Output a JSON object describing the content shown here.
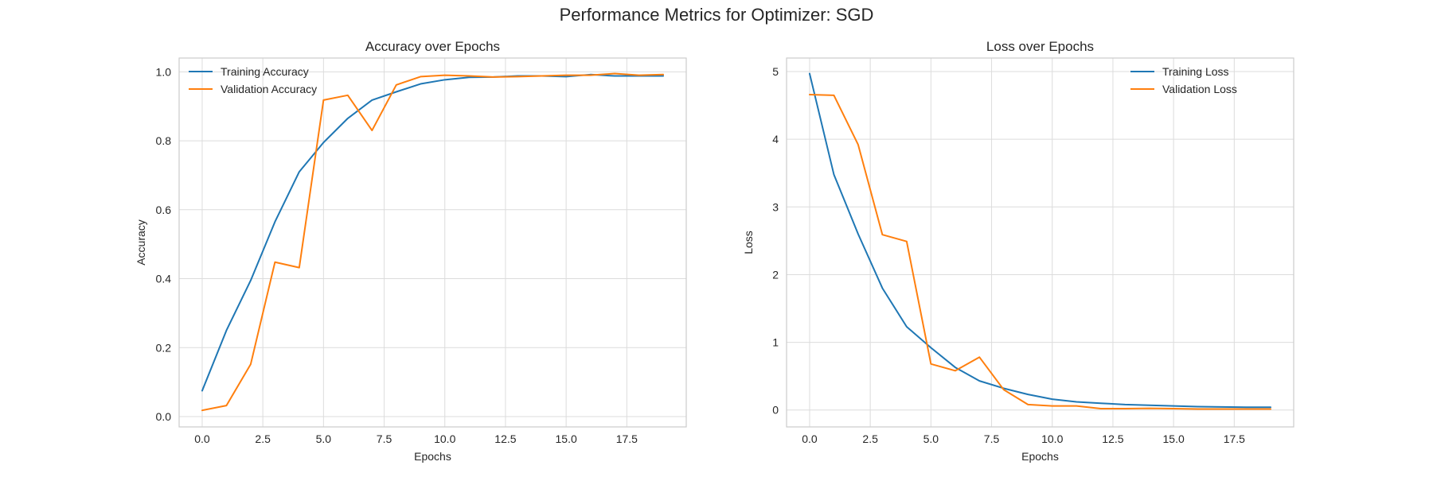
{
  "suptitle": "Performance Metrics for Optimizer: SGD",
  "colors": {
    "training": "#1f77b4",
    "validation": "#ff7f0e",
    "grid": "#dcdcdc",
    "axes_border": "#cccccc",
    "text": "#262626"
  },
  "chart_data": [
    {
      "type": "line",
      "title": "Accuracy over Epochs",
      "xlabel": "Epochs",
      "ylabel": "Accuracy",
      "xlim": [
        -0.95,
        19.95
      ],
      "ylim": [
        -0.03,
        1.04
      ],
      "xticks": [
        0.0,
        2.5,
        5.0,
        7.5,
        10.0,
        12.5,
        15.0,
        17.5
      ],
      "xtick_labels": [
        "0.0",
        "2.5",
        "5.0",
        "7.5",
        "10.0",
        "12.5",
        "15.0",
        "17.5"
      ],
      "yticks": [
        0.0,
        0.2,
        0.4,
        0.6,
        0.8,
        1.0
      ],
      "ytick_labels": [
        "0.0",
        "0.2",
        "0.4",
        "0.6",
        "0.8",
        "1.0"
      ],
      "grid": true,
      "legend_position": "upper-left",
      "x": [
        0,
        1,
        2,
        3,
        4,
        5,
        6,
        7,
        8,
        9,
        10,
        11,
        12,
        13,
        14,
        15,
        16,
        17,
        18,
        19
      ],
      "series": [
        {
          "name": "Training Accuracy",
          "color": "#1f77b4",
          "values": [
            0.075,
            0.25,
            0.395,
            0.565,
            0.71,
            0.795,
            0.865,
            0.918,
            0.942,
            0.965,
            0.977,
            0.984,
            0.985,
            0.988,
            0.988,
            0.986,
            0.992,
            0.988,
            0.988,
            0.988
          ]
        },
        {
          "name": "Validation Accuracy",
          "color": "#ff7f0e",
          "values": [
            0.018,
            0.032,
            0.152,
            0.448,
            0.432,
            0.918,
            0.932,
            0.83,
            0.962,
            0.986,
            0.99,
            0.988,
            0.985,
            0.986,
            0.988,
            0.99,
            0.99,
            0.995,
            0.99,
            0.992
          ]
        }
      ]
    },
    {
      "type": "line",
      "title": "Loss over Epochs",
      "xlabel": "Epochs",
      "ylabel": "Loss",
      "xlim": [
        -0.95,
        19.95
      ],
      "ylim": [
        -0.25,
        5.2
      ],
      "xticks": [
        0.0,
        2.5,
        5.0,
        7.5,
        10.0,
        12.5,
        15.0,
        17.5
      ],
      "xtick_labels": [
        "0.0",
        "2.5",
        "5.0",
        "7.5",
        "10.0",
        "12.5",
        "15.0",
        "17.5"
      ],
      "yticks": [
        0,
        1,
        2,
        3,
        4,
        5
      ],
      "ytick_labels": [
        "0",
        "1",
        "2",
        "3",
        "4",
        "5"
      ],
      "grid": true,
      "legend_position": "upper-right",
      "x": [
        0,
        1,
        2,
        3,
        4,
        5,
        6,
        7,
        8,
        9,
        10,
        11,
        12,
        13,
        14,
        15,
        16,
        17,
        18,
        19
      ],
      "series": [
        {
          "name": "Training Loss",
          "color": "#1f77b4",
          "values": [
            4.97,
            3.48,
            2.6,
            1.8,
            1.23,
            0.92,
            0.63,
            0.43,
            0.32,
            0.23,
            0.16,
            0.12,
            0.1,
            0.08,
            0.07,
            0.06,
            0.05,
            0.045,
            0.04,
            0.04
          ]
        },
        {
          "name": "Validation Loss",
          "color": "#ff7f0e",
          "values": [
            4.66,
            4.65,
            3.92,
            2.59,
            2.49,
            0.68,
            0.58,
            0.78,
            0.3,
            0.08,
            0.06,
            0.06,
            0.02,
            0.02,
            0.025,
            0.02,
            0.015,
            0.015,
            0.015,
            0.015
          ]
        }
      ]
    }
  ]
}
